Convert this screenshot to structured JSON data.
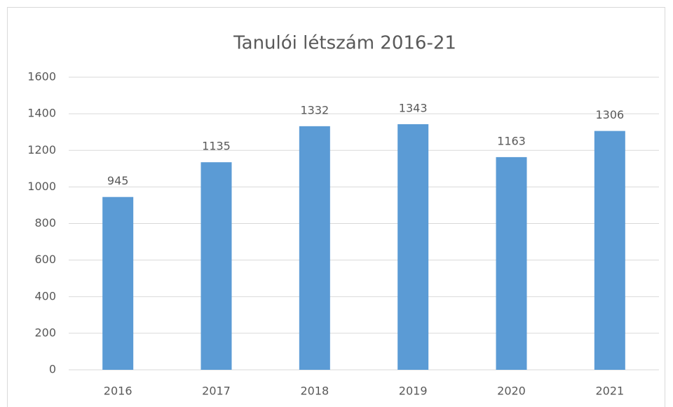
{
  "chart_data": {
    "type": "bar",
    "title": "Tanulói létszám 2016-21",
    "categories": [
      "2016",
      "2017",
      "2018",
      "2019",
      "2020",
      "2021"
    ],
    "values": [
      945,
      1135,
      1332,
      1343,
      1163,
      1306
    ],
    "color": "#5b9bd5",
    "ylim": [
      0,
      1600
    ],
    "yticks": [
      0,
      200,
      400,
      600,
      800,
      1000,
      1200,
      1400,
      1600
    ],
    "grid": true
  }
}
